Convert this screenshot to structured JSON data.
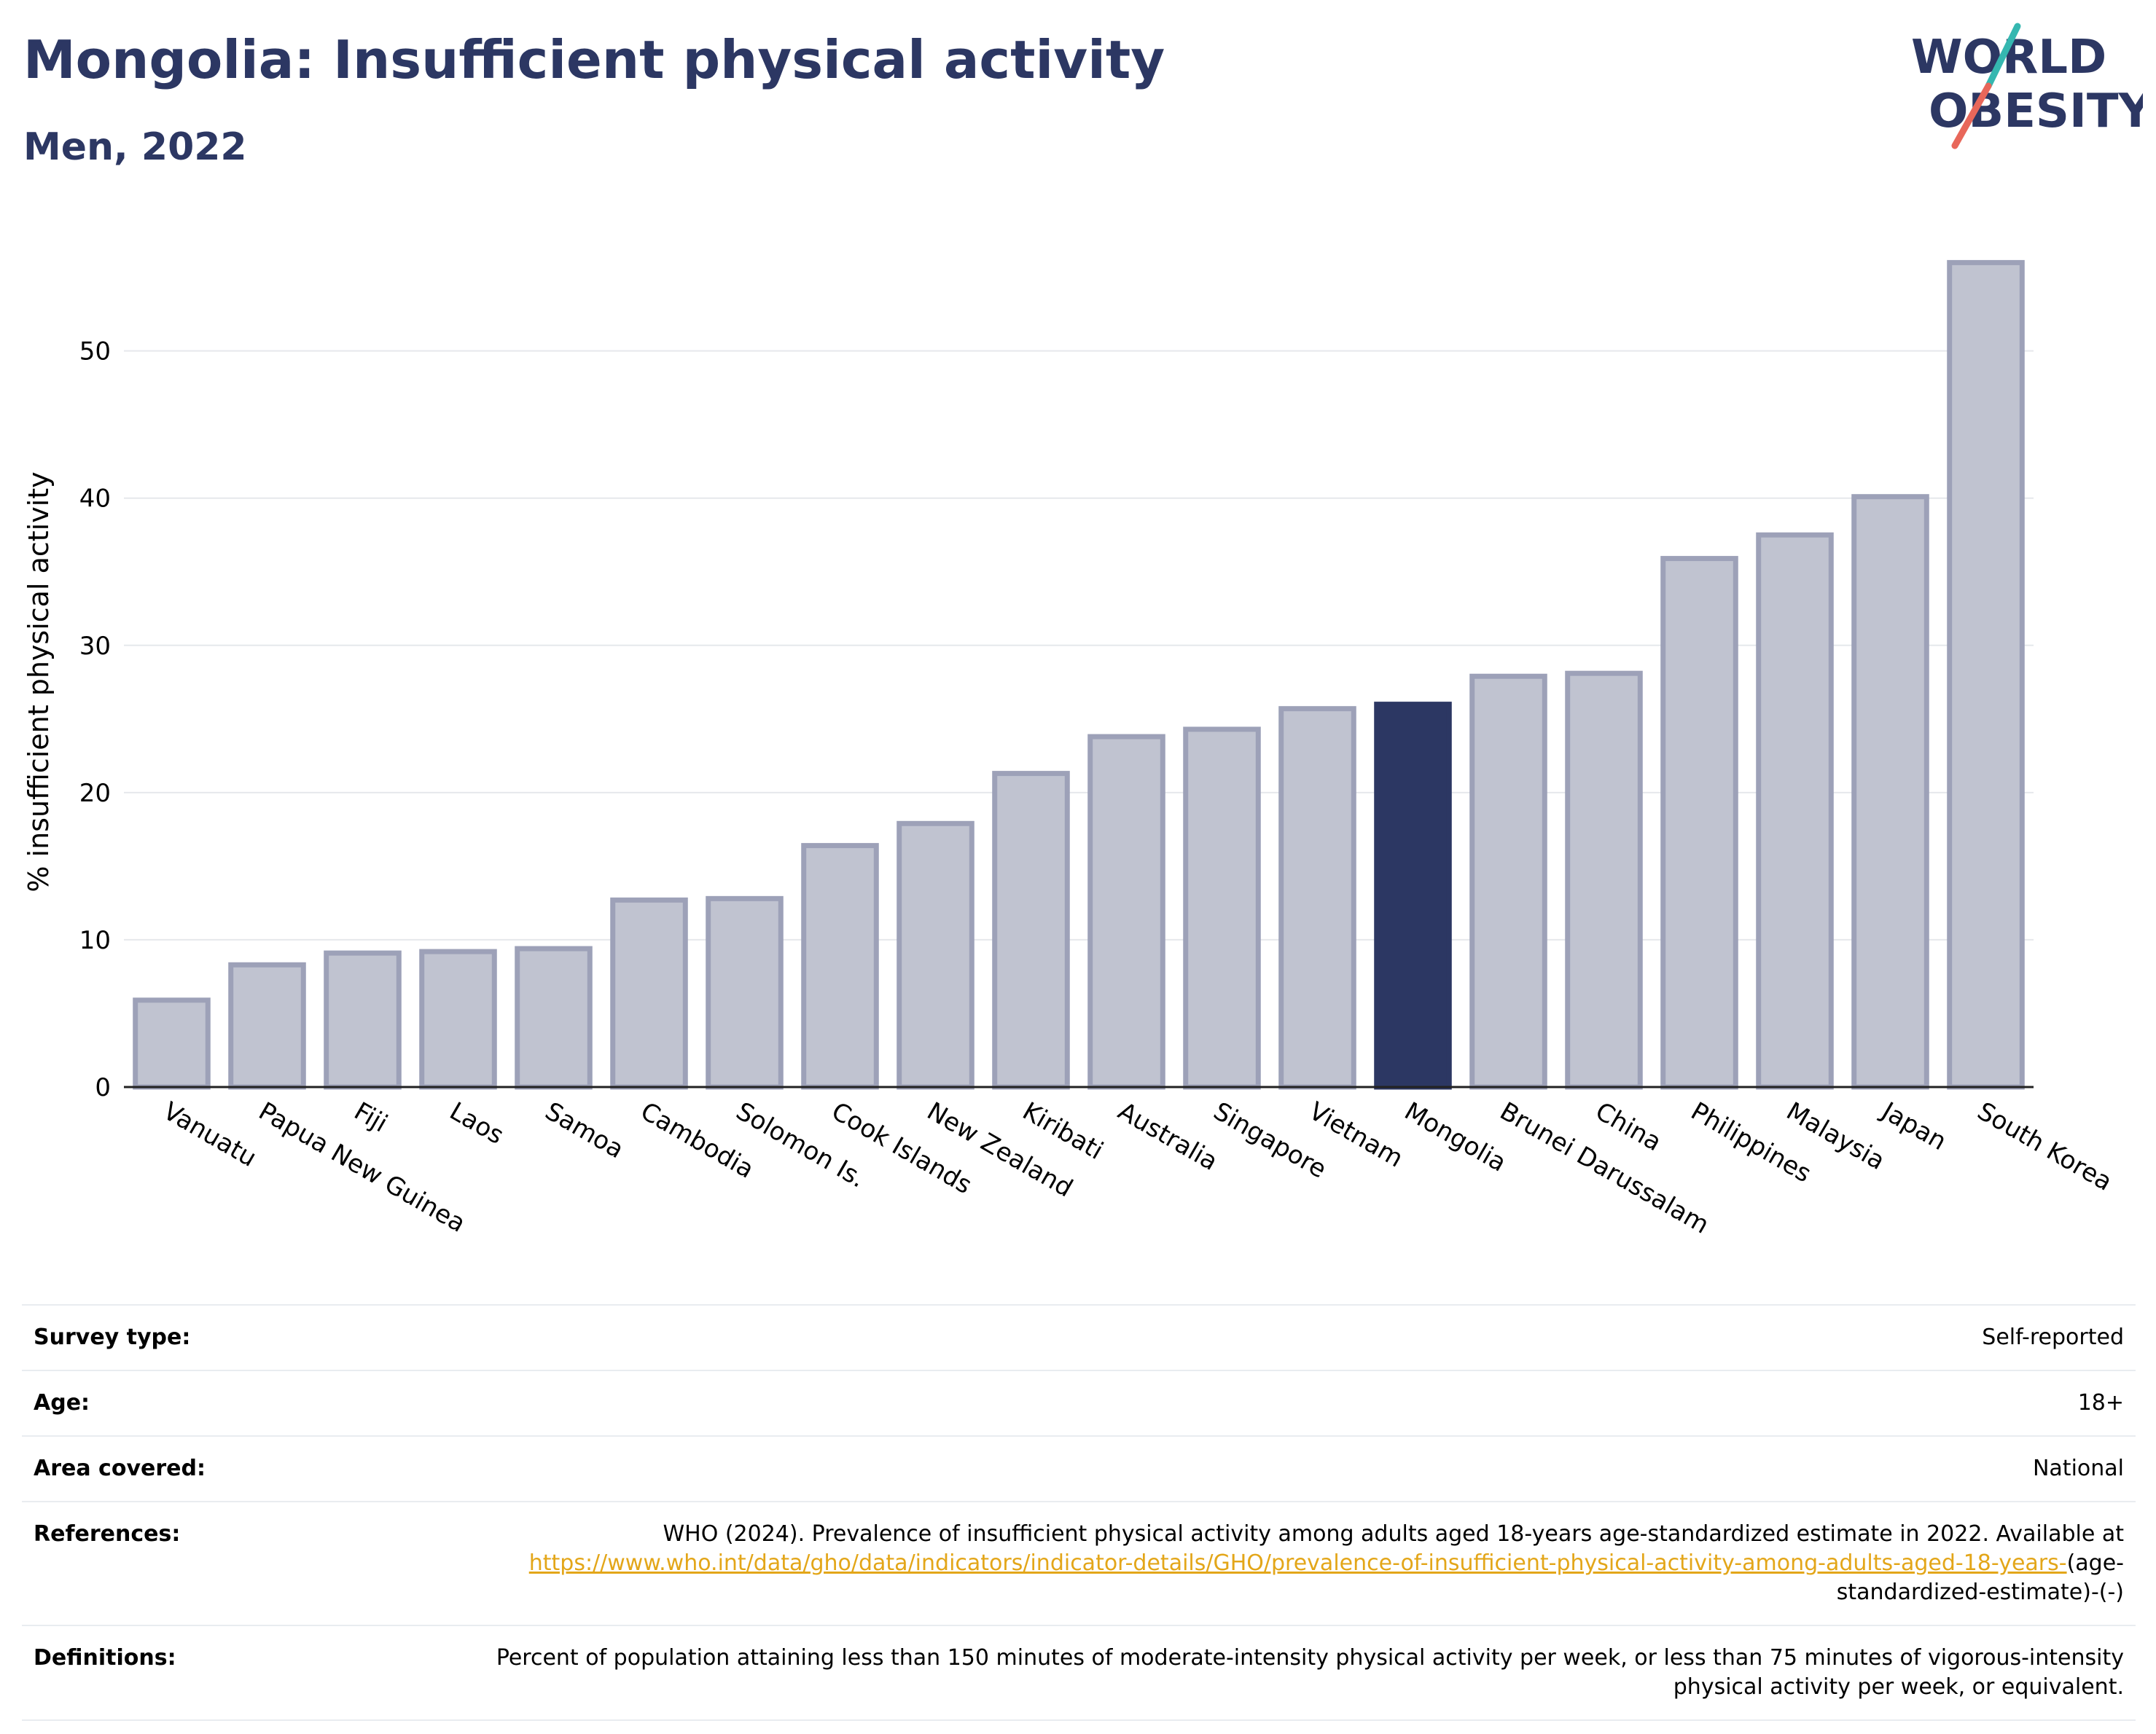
{
  "header": {
    "title": "Mongolia: Insufficient physical activity",
    "subtitle": "Men, 2022"
  },
  "logo": {
    "line1": "WORLD",
    "line2": "OBESITY",
    "colors": {
      "text": "#2c3763",
      "slash_teal": "#35b7b0",
      "slash_coral": "#e8675a"
    }
  },
  "chart_data": {
    "type": "bar",
    "title": "",
    "xlabel": "",
    "ylabel": "% insufficient physical activity",
    "ylim": [
      0,
      58
    ],
    "yticks": [
      0,
      10,
      20,
      30,
      40,
      50
    ],
    "grid": true,
    "highlight": "Mongolia",
    "colors": {
      "bar": "#c0c3d0",
      "bar_outline": "#9da1b8",
      "highlight": "#2c3763",
      "grid": "#e6e8ec"
    },
    "categories": [
      "Vanuatu",
      "Papua New Guinea",
      "Fiji",
      "Laos",
      "Samoa",
      "Cambodia",
      "Solomon Is.",
      "Cook Islands",
      "New Zealand",
      "Kiribati",
      "Australia",
      "Singapore",
      "Vietnam",
      "Mongolia",
      "Brunei Darussalam",
      "China",
      "Philippines",
      "Malaysia",
      "Japan",
      "South Korea"
    ],
    "values": [
      5.9,
      8.3,
      9.1,
      9.2,
      9.4,
      12.7,
      12.8,
      16.4,
      17.9,
      21.3,
      23.8,
      24.3,
      25.7,
      26.0,
      27.9,
      28.1,
      35.9,
      37.5,
      40.1,
      56.0
    ]
  },
  "table": {
    "rows": [
      {
        "label": "Survey type:",
        "value": "Self-reported"
      },
      {
        "label": "Age:",
        "value": "18+"
      },
      {
        "label": "Area covered:",
        "value": "National"
      }
    ],
    "references": {
      "label": "References:",
      "text_before": "WHO (2024). Prevalence of insufficient physical activity among adults aged 18-years age-standardized estimate in 2022. Available at ",
      "link": "https://www.who.int/data/gho/data/indicators/indicator-details/GHO/prevalence-of-insufficient-physical-activity-among-adults-aged-18-years-",
      "text_after": "(age-standardized-estimate)-(-)"
    },
    "definitions": {
      "label": "Definitions:",
      "value": "Percent of population attaining less than 150 minutes of moderate-intensity physical activity per week, or less than 75 minutes of vigorous-intensity physical activity per week, or equivalent."
    }
  }
}
